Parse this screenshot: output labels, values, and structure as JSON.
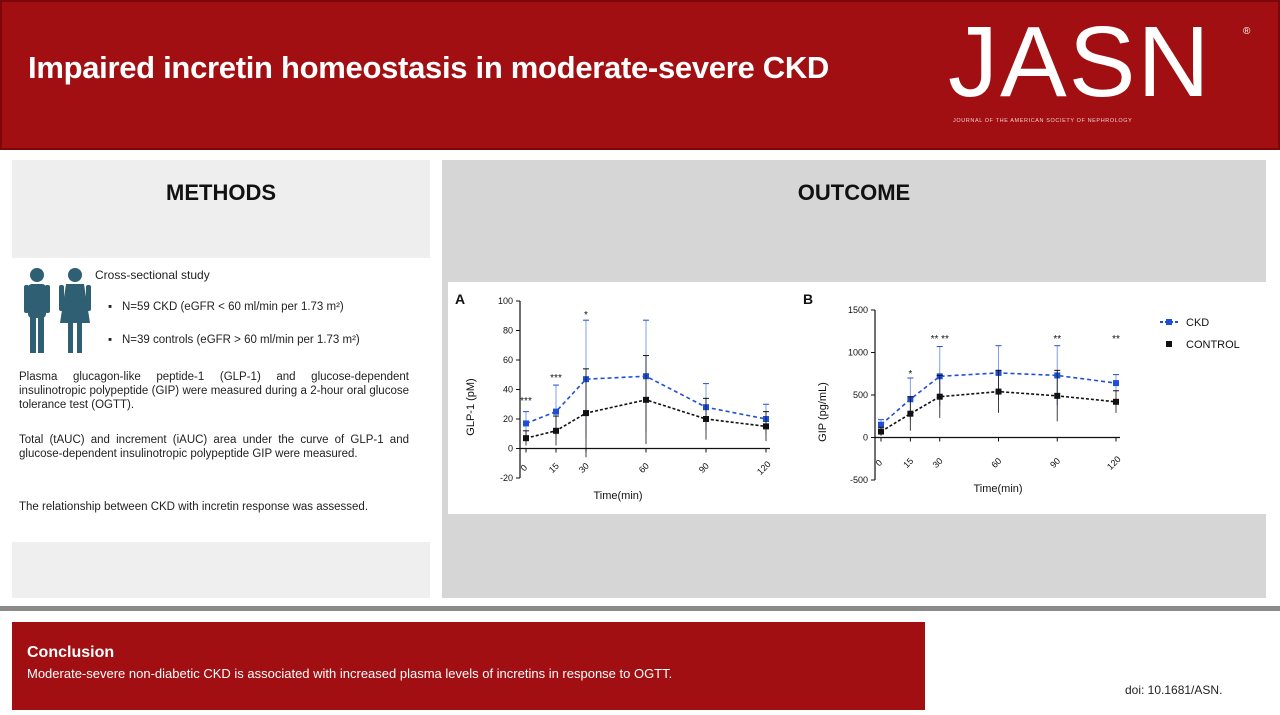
{
  "header": {
    "title": "Impaired incretin homeostasis in moderate-severe CKD",
    "logo": "JASN",
    "logo_subtitle": "JOURNAL OF THE AMERICAN SOCIETY OF NEPHROLOGY"
  },
  "methods": {
    "heading": "METHODS",
    "study_type": "Cross-sectional study",
    "bullets": [
      "N=59 CKD (eGFR < 60 ml/min per 1.73 m²)",
      "N=39 controls (eGFR > 60 ml/min per 1.73 m²)"
    ],
    "paragraphs": [
      "Plasma glucagon-like peptide-1 (GLP-1) and glucose-dependent insulinotropic polypeptide (GIP) were measured during a 2-hour oral glucose tolerance test (OGTT).",
      "Total (tAUC) and increment (iAUC) area under the curve of GLP-1 and glucose-dependent insulinotropic polypeptide GIP were measured.",
      "The relationship between CKD with incretin response was assessed."
    ]
  },
  "outcome": {
    "heading": "OUTCOME"
  },
  "colors": {
    "brand_red": "#a10f12",
    "ckd": "#1f4fd6",
    "control": "#111111"
  },
  "chart_data": [
    {
      "type": "line",
      "panel_label": "A",
      "xlabel": "Time(min)",
      "ylabel": "GLP-1 (pM)",
      "ylim": [
        -20,
        100
      ],
      "yticks": [
        "100",
        "80",
        "60",
        "40",
        "20",
        "0",
        "-20"
      ],
      "xticks": [
        "0",
        "15",
        "30",
        "60",
        "90",
        "120"
      ],
      "x": [
        0,
        15,
        30,
        60,
        90,
        120
      ],
      "series": [
        {
          "name": "CKD",
          "values": [
            17,
            25,
            47,
            49,
            28,
            20
          ],
          "error": [
            8,
            18,
            40,
            38,
            16,
            10
          ]
        },
        {
          "name": "CONTROL",
          "values": [
            7,
            12,
            24,
            33,
            20,
            15
          ],
          "error": [
            5,
            10,
            30,
            30,
            14,
            10
          ]
        }
      ],
      "significance": [
        "***",
        "***",
        "*",
        "",
        "",
        ""
      ]
    },
    {
      "type": "line",
      "panel_label": "B",
      "xlabel": "Time(min)",
      "ylabel": "GIP (pg/mL)",
      "ylim": [
        -500,
        1500
      ],
      "yticks": [
        "1500",
        "1000",
        "500",
        "0",
        "-500"
      ],
      "xticks": [
        "0",
        "15",
        "30",
        "60",
        "90",
        "120"
      ],
      "x": [
        0,
        15,
        30,
        60,
        90,
        120
      ],
      "series": [
        {
          "name": "CKD",
          "values": [
            150,
            450,
            720,
            760,
            730,
            640
          ],
          "error": [
            60,
            250,
            350,
            320,
            350,
            100
          ]
        },
        {
          "name": "CONTROL",
          "values": [
            70,
            280,
            480,
            540,
            490,
            420
          ],
          "error": [
            50,
            200,
            250,
            250,
            300,
            130
          ]
        }
      ],
      "significance": [
        "",
        "*",
        "** **",
        "",
        "**",
        "**"
      ]
    }
  ],
  "legend": [
    "CKD",
    "CONTROL"
  ],
  "conclusion": {
    "title": "Conclusion",
    "text": "Moderate-severe non-diabetic CKD is associated with increased plasma levels of incretins in response to OGTT."
  },
  "doi": "doi: 10.1681/ASN."
}
